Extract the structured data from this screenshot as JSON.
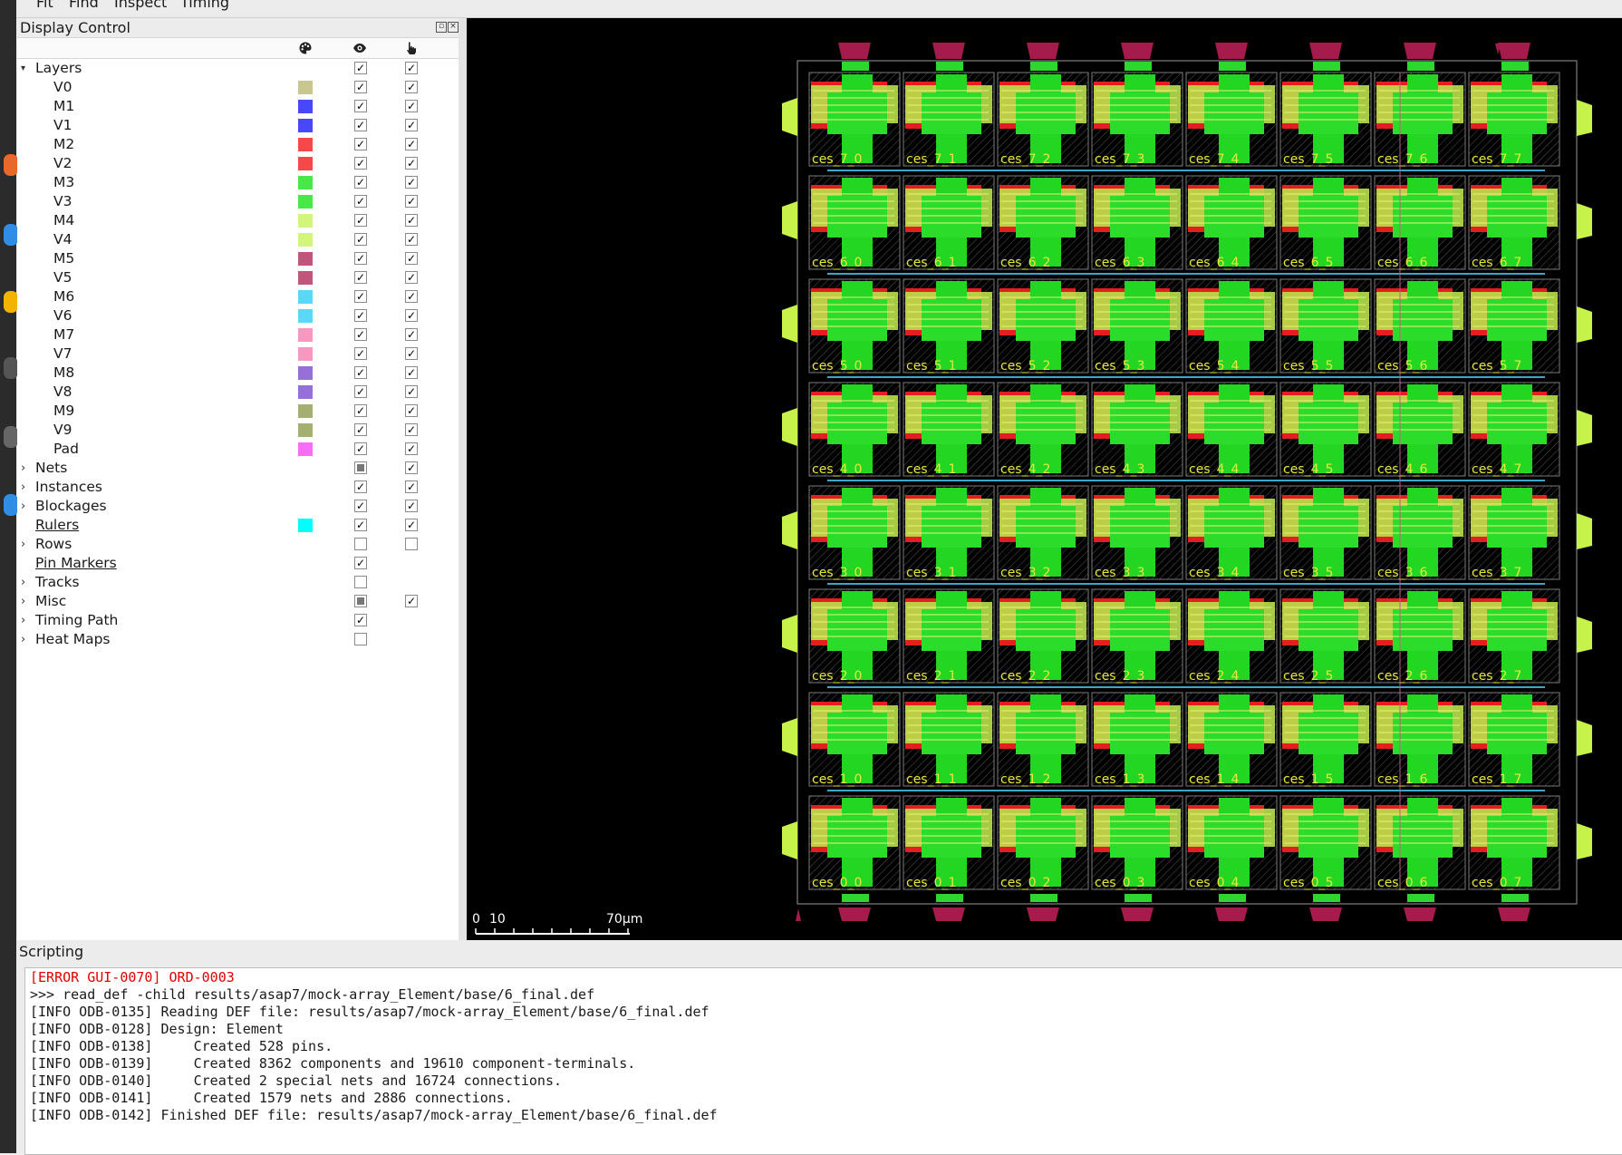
{
  "menubar": {
    "items": [
      "Fit",
      "Find",
      "Inspect",
      "Timing"
    ]
  },
  "display_control": {
    "title": "Display Control",
    "column_icons": [
      "palette-icon",
      "eye-icon",
      "hand-pointer-icon"
    ],
    "layers_group": {
      "label": "Layers",
      "visible": true,
      "selectable": true
    },
    "layers": [
      {
        "name": "V0",
        "color": "#c7c78f",
        "visible": true,
        "selectable": true
      },
      {
        "name": "M1",
        "color": "#4848f8",
        "visible": true,
        "selectable": true
      },
      {
        "name": "V1",
        "color": "#4848f8",
        "visible": true,
        "selectable": true
      },
      {
        "name": "M2",
        "color": "#f64848",
        "visible": true,
        "selectable": true
      },
      {
        "name": "V2",
        "color": "#f64848",
        "visible": true,
        "selectable": true
      },
      {
        "name": "M3",
        "color": "#48e848",
        "visible": true,
        "selectable": true
      },
      {
        "name": "V3",
        "color": "#48e848",
        "visible": true,
        "selectable": true
      },
      {
        "name": "M4",
        "color": "#d2f67a",
        "visible": true,
        "selectable": true
      },
      {
        "name": "V4",
        "color": "#d2f67a",
        "visible": true,
        "selectable": true
      },
      {
        "name": "M5",
        "color": "#c0567a",
        "visible": true,
        "selectable": true
      },
      {
        "name": "V5",
        "color": "#c0567a",
        "visible": true,
        "selectable": true
      },
      {
        "name": "M6",
        "color": "#5ad8f8",
        "visible": true,
        "selectable": true
      },
      {
        "name": "V6",
        "color": "#5ad8f8",
        "visible": true,
        "selectable": true
      },
      {
        "name": "M7",
        "color": "#f898c0",
        "visible": true,
        "selectable": true
      },
      {
        "name": "V7",
        "color": "#f898c0",
        "visible": true,
        "selectable": true
      },
      {
        "name": "M8",
        "color": "#9470d8",
        "visible": true,
        "selectable": true
      },
      {
        "name": "V8",
        "color": "#9470d8",
        "visible": true,
        "selectable": true
      },
      {
        "name": "M9",
        "color": "#a4b070",
        "visible": true,
        "selectable": true
      },
      {
        "name": "V9",
        "color": "#a4b070",
        "visible": true,
        "selectable": true
      },
      {
        "name": "Pad",
        "color": "#f86cf8",
        "visible": true,
        "selectable": true
      }
    ],
    "groups": [
      {
        "label": "Nets",
        "expandable": true,
        "underline": false,
        "color": null,
        "visible": "partial",
        "selectable": true
      },
      {
        "label": "Instances",
        "expandable": true,
        "underline": false,
        "color": null,
        "visible": true,
        "selectable": true
      },
      {
        "label": "Blockages",
        "expandable": true,
        "underline": false,
        "color": null,
        "visible": true,
        "selectable": true
      },
      {
        "label": "Rulers",
        "expandable": false,
        "underline": true,
        "color": "#00ffff",
        "visible": true,
        "selectable": true
      },
      {
        "label": "Rows",
        "expandable": true,
        "underline": false,
        "color": null,
        "visible": false,
        "selectable": false
      },
      {
        "label": "Pin Markers",
        "expandable": false,
        "underline": true,
        "color": null,
        "visible": true,
        "selectable": null
      },
      {
        "label": "Tracks",
        "expandable": true,
        "underline": false,
        "color": null,
        "visible": false,
        "selectable": null
      },
      {
        "label": "Misc",
        "expandable": true,
        "underline": false,
        "color": null,
        "visible": "partial",
        "selectable": true
      },
      {
        "label": "Timing Path",
        "expandable": true,
        "underline": false,
        "color": null,
        "visible": true,
        "selectable": null
      },
      {
        "label": "Heat Maps",
        "expandable": true,
        "underline": false,
        "color": null,
        "visible": false,
        "selectable": null
      }
    ]
  },
  "layout_view": {
    "grid_rows": 8,
    "grid_cols": 8,
    "cell_prefix": "ces",
    "label_color": "#e8e83a",
    "scale_bar": {
      "labels": [
        "0",
        "10",
        "70μm"
      ]
    }
  },
  "scripting": {
    "title": "Scripting",
    "lines": [
      {
        "text": "[ERROR GUI-0070] ORD-0003",
        "type": "error"
      },
      {
        "text": ">>> read_def -child results/asap7/mock-array_Element/base/6_final.def",
        "type": "cmd"
      },
      {
        "text": "[INFO ODB-0135] Reading DEF file: results/asap7/mock-array_Element/base/6_final.def",
        "type": "info"
      },
      {
        "text": "[INFO ODB-0128] Design: Element",
        "type": "info"
      },
      {
        "text": "[INFO ODB-0138]     Created 528 pins.",
        "type": "info"
      },
      {
        "text": "[INFO ODB-0139]     Created 8362 components and 19610 component-terminals.",
        "type": "info"
      },
      {
        "text": "[INFO ODB-0140]     Created 2 special nets and 16724 connections.",
        "type": "info"
      },
      {
        "text": "[INFO ODB-0141]     Created 1579 nets and 2886 connections.",
        "type": "info"
      },
      {
        "text": "[INFO ODB-0142] Finished DEF file: results/asap7/mock-array_Element/base/6_final.def",
        "type": "info"
      }
    ]
  }
}
